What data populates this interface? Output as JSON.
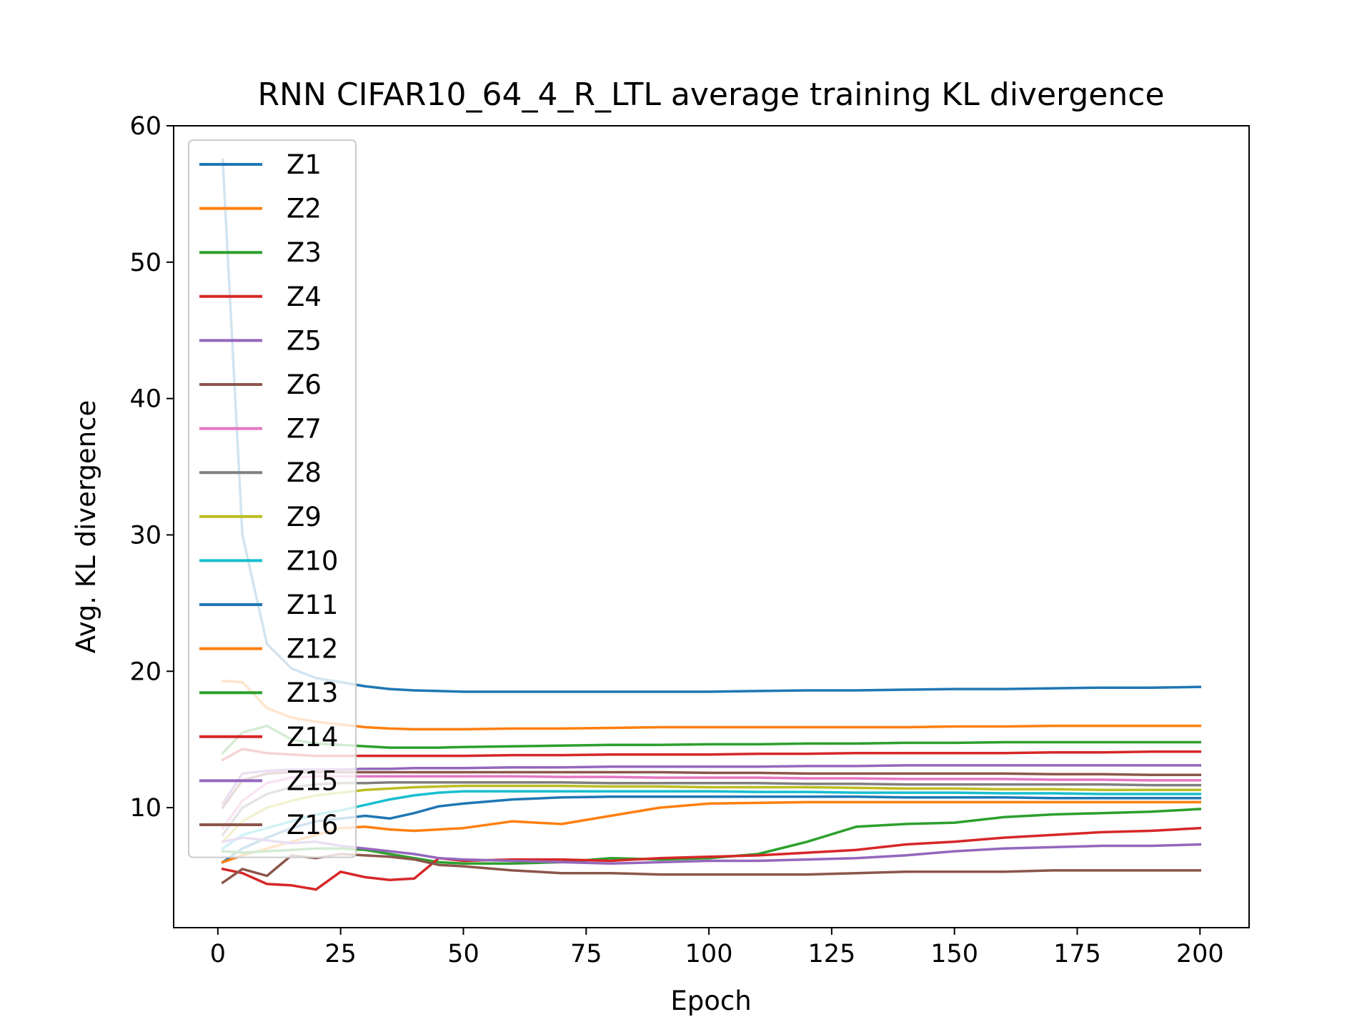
{
  "chart_data": {
    "type": "line",
    "title": "RNN CIFAR10_64_4_R_LTL average training KL divergence",
    "xlabel": "Epoch",
    "ylabel": "Avg. KL divergence",
    "xlim": [
      -9,
      210
    ],
    "ylim": [
      1.2,
      60
    ],
    "xticks": [
      0,
      25,
      50,
      75,
      100,
      125,
      150,
      175,
      200
    ],
    "yticks": [
      10,
      20,
      30,
      40,
      50,
      60
    ],
    "grid": false,
    "legend": {
      "position": "upper-left"
    },
    "x": [
      1,
      5,
      10,
      15,
      20,
      25,
      30,
      35,
      40,
      45,
      50,
      60,
      70,
      80,
      90,
      100,
      110,
      120,
      130,
      140,
      150,
      160,
      170,
      180,
      190,
      200
    ],
    "series": [
      {
        "name": "Z1",
        "color": "#1f77b4",
        "values": [
          57.5,
          30.0,
          22.0,
          20.2,
          19.5,
          19.2,
          18.9,
          18.7,
          18.6,
          18.55,
          18.5,
          18.5,
          18.5,
          18.5,
          18.5,
          18.5,
          18.55,
          18.6,
          18.6,
          18.65,
          18.7,
          18.7,
          18.75,
          18.8,
          18.8,
          18.85
        ]
      },
      {
        "name": "Z2",
        "color": "#ff7f0e",
        "values": [
          19.3,
          19.2,
          17.3,
          16.6,
          16.3,
          16.1,
          15.9,
          15.8,
          15.75,
          15.75,
          15.75,
          15.8,
          15.8,
          15.85,
          15.9,
          15.9,
          15.9,
          15.9,
          15.9,
          15.9,
          15.95,
          15.95,
          16.0,
          16.0,
          16.0,
          16.0
        ]
      },
      {
        "name": "Z3",
        "color": "#2ca02c",
        "values": [
          14.0,
          15.5,
          16.0,
          15.0,
          14.7,
          14.6,
          14.5,
          14.4,
          14.4,
          14.4,
          14.45,
          14.5,
          14.55,
          14.6,
          14.6,
          14.65,
          14.65,
          14.7,
          14.7,
          14.75,
          14.75,
          14.8,
          14.8,
          14.8,
          14.8,
          14.8
        ]
      },
      {
        "name": "Z4",
        "color": "#d62728",
        "values": [
          13.5,
          14.3,
          14.0,
          13.9,
          13.8,
          13.8,
          13.8,
          13.8,
          13.8,
          13.8,
          13.8,
          13.85,
          13.85,
          13.9,
          13.9,
          13.9,
          13.95,
          13.95,
          14.0,
          14.0,
          14.0,
          14.0,
          14.05,
          14.05,
          14.1,
          14.1
        ]
      },
      {
        "name": "Z5",
        "color": "#9467bd",
        "values": [
          10.3,
          12.5,
          12.7,
          12.8,
          12.8,
          12.8,
          12.85,
          12.85,
          12.9,
          12.9,
          12.9,
          12.95,
          12.95,
          13.0,
          13.0,
          13.0,
          13.0,
          13.05,
          13.05,
          13.1,
          13.1,
          13.1,
          13.1,
          13.1,
          13.1,
          13.1
        ]
      },
      {
        "name": "Z6",
        "color": "#8c564b",
        "values": [
          10.0,
          12.0,
          12.5,
          12.6,
          12.6,
          12.6,
          12.6,
          12.6,
          12.6,
          12.6,
          12.6,
          12.6,
          12.6,
          12.6,
          12.6,
          12.55,
          12.55,
          12.5,
          12.5,
          12.5,
          12.5,
          12.5,
          12.45,
          12.45,
          12.4,
          12.4
        ]
      },
      {
        "name": "Z7",
        "color": "#e377c2",
        "values": [
          8.5,
          10.5,
          11.8,
          12.2,
          12.3,
          12.3,
          12.3,
          12.3,
          12.3,
          12.3,
          12.3,
          12.3,
          12.25,
          12.25,
          12.2,
          12.2,
          12.2,
          12.15,
          12.15,
          12.1,
          12.1,
          12.1,
          12.05,
          12.05,
          12.0,
          12.0
        ]
      },
      {
        "name": "Z8",
        "color": "#7f7f7f",
        "values": [
          8.0,
          10.0,
          11.0,
          11.5,
          11.7,
          11.8,
          11.8,
          11.85,
          11.85,
          11.85,
          11.85,
          11.85,
          11.85,
          11.8,
          11.8,
          11.8,
          11.8,
          11.75,
          11.75,
          11.7,
          11.7,
          11.7,
          11.7,
          11.7,
          11.65,
          11.65
        ]
      },
      {
        "name": "Z9",
        "color": "#bcbd22",
        "values": [
          7.5,
          9.0,
          10.0,
          10.5,
          10.9,
          11.1,
          11.3,
          11.4,
          11.5,
          11.55,
          11.6,
          11.6,
          11.6,
          11.55,
          11.55,
          11.5,
          11.5,
          11.5,
          11.45,
          11.4,
          11.4,
          11.35,
          11.35,
          11.3,
          11.3,
          11.3
        ]
      },
      {
        "name": "Z10",
        "color": "#17becf",
        "values": [
          7.0,
          8.0,
          8.5,
          9.0,
          9.5,
          9.8,
          10.2,
          10.6,
          10.9,
          11.1,
          11.2,
          11.2,
          11.2,
          11.2,
          11.2,
          11.2,
          11.15,
          11.15,
          11.1,
          11.1,
          11.1,
          11.05,
          11.05,
          11.0,
          11.0,
          11.0
        ]
      },
      {
        "name": "Z11",
        "color": "#1f77b4",
        "values": [
          6.0,
          7.0,
          7.8,
          8.5,
          9.0,
          9.2,
          9.4,
          9.2,
          9.6,
          10.1,
          10.3,
          10.6,
          10.75,
          10.8,
          10.8,
          10.8,
          10.8,
          10.8,
          10.8,
          10.75,
          10.75,
          10.75,
          10.7,
          10.7,
          10.7,
          10.7
        ]
      },
      {
        "name": "Z12",
        "color": "#ff7f0e",
        "values": [
          6.0,
          6.5,
          7.0,
          7.5,
          8.0,
          8.5,
          8.6,
          8.4,
          8.3,
          8.4,
          8.5,
          9.0,
          8.8,
          9.4,
          10.0,
          10.3,
          10.35,
          10.4,
          10.4,
          10.4,
          10.4,
          10.4,
          10.4,
          10.4,
          10.4,
          10.4
        ]
      },
      {
        "name": "Z13",
        "color": "#2ca02c",
        "values": [
          6.8,
          6.7,
          6.8,
          6.9,
          7.0,
          7.0,
          6.9,
          6.6,
          6.3,
          6.0,
          5.9,
          5.9,
          6.0,
          6.3,
          6.2,
          6.3,
          6.6,
          7.5,
          8.6,
          8.8,
          8.9,
          9.3,
          9.5,
          9.6,
          9.7,
          9.9
        ]
      },
      {
        "name": "Z14",
        "color": "#d62728",
        "values": [
          5.5,
          5.2,
          4.4,
          4.3,
          4.0,
          5.3,
          4.9,
          4.7,
          4.8,
          6.3,
          6.1,
          6.2,
          6.2,
          6.1,
          6.3,
          6.4,
          6.5,
          6.7,
          6.9,
          7.3,
          7.5,
          7.8,
          8.0,
          8.2,
          8.3,
          8.5
        ]
      },
      {
        "name": "Z15",
        "color": "#9467bd",
        "values": [
          7.5,
          7.8,
          7.6,
          7.4,
          7.5,
          7.2,
          7.0,
          6.8,
          6.6,
          6.3,
          6.2,
          6.1,
          6.0,
          5.9,
          6.0,
          6.1,
          6.1,
          6.2,
          6.3,
          6.5,
          6.8,
          7.0,
          7.1,
          7.2,
          7.2,
          7.3
        ]
      },
      {
        "name": "Z16",
        "color": "#8c564b",
        "values": [
          4.5,
          5.5,
          5.0,
          6.5,
          6.3,
          6.6,
          6.5,
          6.4,
          6.2,
          5.8,
          5.7,
          5.4,
          5.2,
          5.2,
          5.1,
          5.1,
          5.1,
          5.1,
          5.2,
          5.3,
          5.3,
          5.3,
          5.4,
          5.4,
          5.4,
          5.4
        ]
      }
    ]
  }
}
